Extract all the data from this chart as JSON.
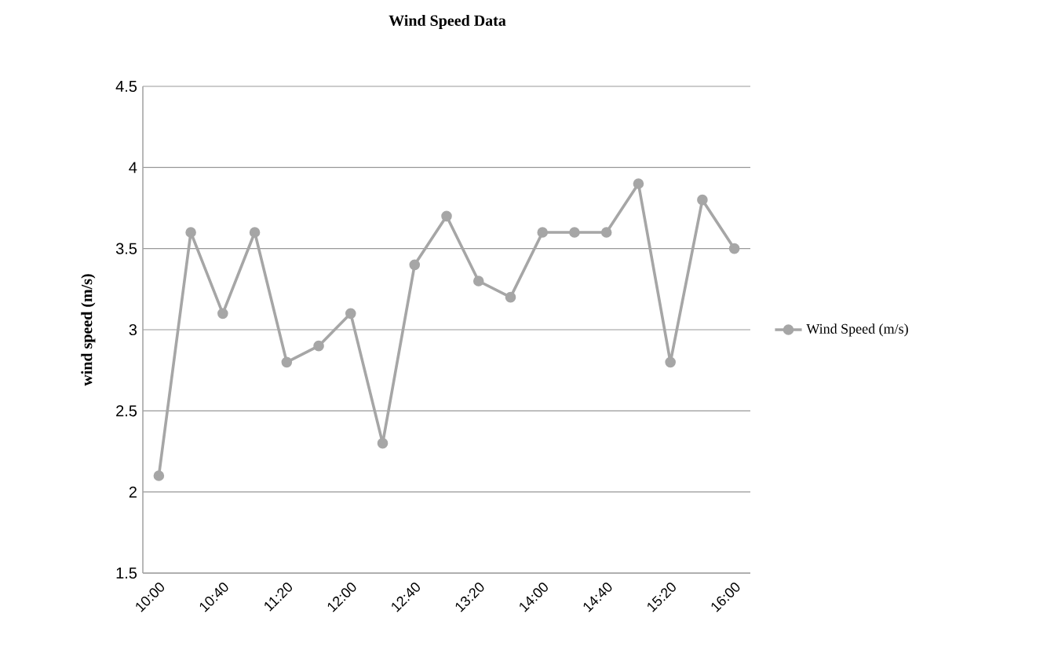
{
  "chart_data": {
    "type": "line",
    "title": "Wind  Speed Data",
    "ylabel": "wind  speed (m/s)",
    "categories": [
      "10:00",
      null,
      "10:40",
      null,
      "11:20",
      null,
      "12:00",
      null,
      "12:40",
      null,
      "13:20",
      null,
      "14:00",
      null,
      "14:40",
      null,
      "15:20",
      null,
      "16:00"
    ],
    "series": [
      {
        "name": "Wind Speed (m/s)",
        "color": "#a6a6a6",
        "values": [
          2.1,
          3.6,
          3.1,
          3.6,
          2.8,
          2.9,
          3.1,
          2.3,
          3.4,
          3.7,
          3.3,
          3.2,
          3.6,
          3.6,
          3.6,
          3.9,
          2.8,
          3.8,
          3.5
        ]
      }
    ],
    "ylim": [
      1.5,
      4.5
    ],
    "yticks": [
      1.5,
      2,
      2.5,
      3,
      3.5,
      4,
      4.5
    ],
    "grid": "y",
    "legend": "right",
    "marker": "circle",
    "line_style": "solid"
  }
}
